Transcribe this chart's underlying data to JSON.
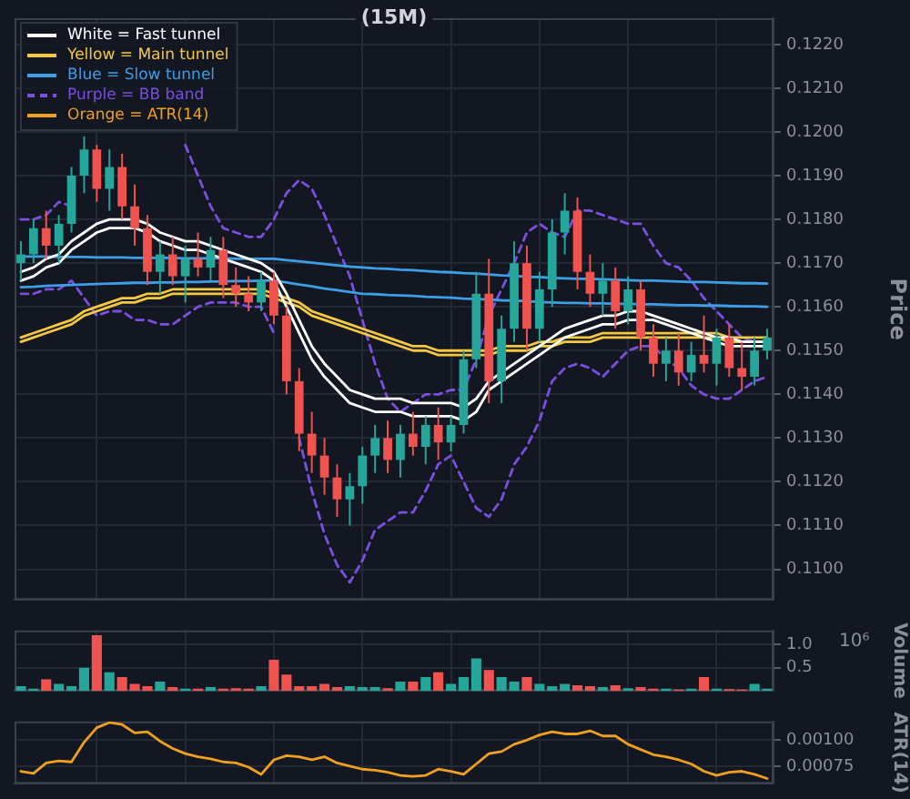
{
  "chart_data": [
    {
      "type": "candlestick",
      "title": "(15M)",
      "ylabel": "Price",
      "categories": [
        null,
        null,
        null,
        null,
        null,
        null,
        null,
        null,
        null,
        null,
        null,
        null,
        null,
        null,
        null,
        null,
        null,
        null,
        null,
        null,
        null,
        null,
        null,
        null,
        null,
        null,
        null,
        null,
        null,
        null,
        null,
        null,
        null,
        null,
        null,
        null,
        null,
        null,
        null,
        null,
        null,
        null,
        null,
        null,
        null,
        null,
        null,
        null,
        null,
        null,
        null,
        null,
        null,
        null,
        null,
        null,
        null,
        null,
        null,
        null
      ],
      "ohlc": [
        [
          0.117,
          0.1175,
          0.1166,
          0.1172
        ],
        [
          0.1172,
          0.118,
          0.117,
          0.1178
        ],
        [
          0.1178,
          0.1182,
          0.1171,
          0.1174
        ],
        [
          0.1174,
          0.1181,
          0.117,
          0.1179
        ],
        [
          0.1179,
          0.1192,
          0.1177,
          0.119
        ],
        [
          0.119,
          0.1199,
          0.1186,
          0.1196
        ],
        [
          0.1196,
          0.1197,
          0.1184,
          0.1187
        ],
        [
          0.1187,
          0.1196,
          0.1182,
          0.1192
        ],
        [
          0.1192,
          0.1195,
          0.118,
          0.1183
        ],
        [
          0.1183,
          0.1188,
          0.1174,
          0.1178
        ],
        [
          0.1178,
          0.1181,
          0.1165,
          0.1168
        ],
        [
          0.1168,
          0.1175,
          0.1163,
          0.1172
        ],
        [
          0.1172,
          0.1176,
          0.1165,
          0.1167
        ],
        [
          0.1167,
          0.1174,
          0.1161,
          0.1171
        ],
        [
          0.1171,
          0.1177,
          0.1167,
          0.1169
        ],
        [
          0.1169,
          0.1176,
          0.1166,
          0.1173
        ],
        [
          0.1173,
          0.1176,
          0.1162,
          0.1165
        ],
        [
          0.1165,
          0.1169,
          0.116,
          0.1163
        ],
        [
          0.1163,
          0.1167,
          0.1159,
          0.1161
        ],
        [
          0.1161,
          0.1168,
          0.1159,
          0.1166
        ],
        [
          0.1166,
          0.1168,
          0.1156,
          0.1158
        ],
        [
          0.1158,
          0.116,
          0.114,
          0.1143
        ],
        [
          0.1143,
          0.1146,
          0.1127,
          0.1131
        ],
        [
          0.1131,
          0.1136,
          0.1122,
          0.1126
        ],
        [
          0.1126,
          0.113,
          0.1117,
          0.1121
        ],
        [
          0.1121,
          0.1124,
          0.1112,
          0.1116
        ],
        [
          0.1116,
          0.1122,
          0.111,
          0.1119
        ],
        [
          0.1119,
          0.1128,
          0.1115,
          0.1126
        ],
        [
          0.1126,
          0.1133,
          0.1122,
          0.113
        ],
        [
          0.113,
          0.1134,
          0.1122,
          0.1125
        ],
        [
          0.1125,
          0.1133,
          0.1121,
          0.1131
        ],
        [
          0.1131,
          0.1136,
          0.1126,
          0.1128
        ],
        [
          0.1128,
          0.1135,
          0.1124,
          0.1133
        ],
        [
          0.1133,
          0.1137,
          0.1125,
          0.1129
        ],
        [
          0.1129,
          0.1135,
          0.1127,
          0.1133
        ],
        [
          0.1133,
          0.115,
          0.1131,
          0.1148
        ],
        [
          0.1148,
          0.1168,
          0.1146,
          0.1163
        ],
        [
          0.1163,
          0.1171,
          0.1138,
          0.1143
        ],
        [
          0.1143,
          0.1158,
          0.1138,
          0.1155
        ],
        [
          0.1155,
          0.1175,
          0.1152,
          0.117
        ],
        [
          0.117,
          0.1174,
          0.115,
          0.1155
        ],
        [
          0.1155,
          0.1168,
          0.1152,
          0.1164
        ],
        [
          0.1164,
          0.118,
          0.116,
          0.1177
        ],
        [
          0.1177,
          0.1186,
          0.1172,
          0.1182
        ],
        [
          0.1182,
          0.1185,
          0.1164,
          0.1168
        ],
        [
          0.1168,
          0.1172,
          0.116,
          0.1163
        ],
        [
          0.1163,
          0.117,
          0.1158,
          0.1166
        ],
        [
          0.1166,
          0.1169,
          0.1155,
          0.1159
        ],
        [
          0.1159,
          0.1167,
          0.1156,
          0.1164
        ],
        [
          0.1164,
          0.1166,
          0.115,
          0.1153
        ],
        [
          0.1153,
          0.1156,
          0.1144,
          0.1147
        ],
        [
          0.1147,
          0.1153,
          0.1143,
          0.115
        ],
        [
          0.115,
          0.1154,
          0.1142,
          0.1145
        ],
        [
          0.1145,
          0.1152,
          0.1143,
          0.1149
        ],
        [
          0.1149,
          0.1158,
          0.1145,
          0.1147
        ],
        [
          0.1147,
          0.1155,
          0.1142,
          0.1153
        ],
        [
          0.1153,
          0.1156,
          0.1144,
          0.1146
        ],
        [
          0.1146,
          0.1152,
          0.1141,
          0.1144
        ],
        [
          0.1144,
          0.1153,
          0.1142,
          0.115
        ],
        [
          0.115,
          0.1155,
          0.1148,
          0.1153
        ]
      ],
      "colors": [
        "#26a69a",
        "#26a69a",
        "#ef5350",
        "#26a69a",
        "#26a69a",
        "#26a69a",
        "#ef5350",
        "#26a69a",
        "#ef5350",
        "#ef5350",
        "#ef5350",
        "#26a69a",
        "#ef5350",
        "#26a69a",
        "#ef5350",
        "#26a69a",
        "#ef5350",
        "#ef5350",
        "#ef5350",
        "#26a69a",
        "#ef5350",
        "#ef5350",
        "#ef5350",
        "#ef5350",
        "#ef5350",
        "#ef5350",
        "#26a69a",
        "#26a69a",
        "#26a69a",
        "#ef5350",
        "#26a69a",
        "#ef5350",
        "#26a69a",
        "#ef5350",
        "#26a69a",
        "#26a69a",
        "#26a69a",
        "#ef5350",
        "#26a69a",
        "#26a69a",
        "#ef5350",
        "#26a69a",
        "#26a69a",
        "#26a69a",
        "#ef5350",
        "#ef5350",
        "#26a69a",
        "#ef5350",
        "#26a69a",
        "#ef5350",
        "#ef5350",
        "#26a69a",
        "#ef5350",
        "#26a69a",
        "#ef5350",
        "#26a69a",
        "#ef5350",
        "#ef5350",
        "#26a69a",
        "#26a69a"
      ],
      "series": [
        {
          "type": "line",
          "name": "White = Fast tunnel",
          "color": "#ffffff",
          "values": [
            0.1168,
            0.1169,
            0.1171,
            0.1172,
            0.1175,
            0.1177,
            0.1179,
            0.118,
            0.118,
            0.118,
            0.1179,
            0.1177,
            0.1176,
            0.1175,
            0.1175,
            0.1174,
            0.1173,
            0.1172,
            0.1171,
            0.117,
            0.1168,
            0.1163,
            0.1157,
            0.1151,
            0.1147,
            0.1144,
            0.1141,
            0.114,
            0.1139,
            0.1139,
            0.1139,
            0.1138,
            0.1138,
            0.1138,
            0.1138,
            0.1137,
            0.1139,
            0.1143,
            0.1145,
            0.1147,
            0.1149,
            0.1151,
            0.1153,
            0.1155,
            0.1156,
            0.1157,
            0.1158,
            0.1158,
            0.1159,
            0.1159,
            0.1158,
            0.1157,
            0.1156,
            0.1155,
            0.1154,
            0.1153,
            0.1153,
            0.1152,
            0.1152,
            0.1152
          ]
        },
        {
          "type": "line",
          "color": "#ffffff",
          "values": [
            0.1166,
            0.1167,
            0.1169,
            0.117,
            0.1173,
            0.1175,
            0.1177,
            0.1178,
            0.1178,
            0.1178,
            0.1177,
            0.1175,
            0.1174,
            0.1173,
            0.1173,
            0.1172,
            0.1171,
            0.117,
            0.1169,
            0.1168,
            0.1166,
            0.116,
            0.1154,
            0.1148,
            0.1144,
            0.1141,
            0.1138,
            0.1137,
            0.1136,
            0.1136,
            0.1136,
            0.1135,
            0.1135,
            0.1135,
            0.1135,
            0.1134,
            0.1136,
            0.1141,
            0.1143,
            0.1145,
            0.1147,
            0.1149,
            0.1151,
            0.1153,
            0.1154,
            0.1155,
            0.1156,
            0.1156,
            0.1157,
            0.1157,
            0.1157,
            0.1156,
            0.1155,
            0.1154,
            0.1153,
            0.1152,
            0.1151,
            0.1151,
            0.1151,
            0.1151
          ]
        },
        {
          "type": "line",
          "name": "Yellow = Main tunnel",
          "color": "#f5c842",
          "values": [
            0.1153,
            0.1154,
            0.1155,
            0.1156,
            0.1157,
            0.1159,
            0.116,
            0.1161,
            0.1162,
            0.1162,
            0.1163,
            0.1163,
            0.1164,
            0.1164,
            0.1164,
            0.1164,
            0.1164,
            0.1164,
            0.1164,
            0.1164,
            0.1163,
            0.1162,
            0.1161,
            0.1159,
            0.1158,
            0.1157,
            0.1156,
            0.1155,
            0.1154,
            0.1153,
            0.1152,
            0.1151,
            0.1151,
            0.115,
            0.115,
            0.115,
            0.115,
            0.115,
            0.1151,
            0.1151,
            0.1151,
            0.1152,
            0.1152,
            0.1153,
            0.1153,
            0.1153,
            0.1154,
            0.1154,
            0.1154,
            0.1154,
            0.1154,
            0.1154,
            0.1154,
            0.1154,
            0.1154,
            0.1154,
            0.1153,
            0.1153,
            0.1153,
            0.1153
          ]
        },
        {
          "type": "line",
          "color": "#f5c842",
          "values": [
            0.1152,
            0.1153,
            0.1154,
            0.1155,
            0.1156,
            0.1158,
            0.1159,
            0.116,
            0.1161,
            0.1161,
            0.1162,
            0.1162,
            0.1163,
            0.1163,
            0.1163,
            0.1163,
            0.1163,
            0.1163,
            0.1163,
            0.1163,
            0.1162,
            0.1161,
            0.116,
            0.1158,
            0.1157,
            0.1156,
            0.1155,
            0.1154,
            0.1153,
            0.1152,
            0.1151,
            0.115,
            0.115,
            0.1149,
            0.1149,
            0.1149,
            0.1149,
            0.1149,
            0.115,
            0.115,
            0.115,
            0.1151,
            0.1151,
            0.1152,
            0.1152,
            0.1152,
            0.1153,
            0.1153,
            0.1153,
            0.1153,
            0.1153,
            0.1153,
            0.1153,
            0.1153,
            0.1153,
            0.1153,
            0.1152,
            0.1152,
            0.1152,
            0.1152
          ]
        },
        {
          "type": "line",
          "name": "Blue = Slow tunnel",
          "color": "#3d9fe6",
          "values": [
            0.11715,
            0.11715,
            0.11715,
            0.11714,
            0.11714,
            0.11714,
            0.11713,
            0.11713,
            0.11713,
            0.11712,
            0.11712,
            0.11712,
            0.11712,
            0.11711,
            0.11711,
            0.11711,
            0.11711,
            0.1171,
            0.1171,
            0.1171,
            0.1171,
            0.11707,
            0.11704,
            0.11701,
            0.11698,
            0.11695,
            0.11692,
            0.1169,
            0.11688,
            0.11687,
            0.11685,
            0.11684,
            0.11682,
            0.1168,
            0.11679,
            0.11677,
            0.11676,
            0.11674,
            0.11672,
            0.11671,
            0.11669,
            0.11668,
            0.11666,
            0.11665,
            0.11664,
            0.11664,
            0.11663,
            0.11662,
            0.11661,
            0.1166,
            0.1166,
            0.11659,
            0.11658,
            0.11657,
            0.11657,
            0.11656,
            0.11655,
            0.11654,
            0.11654,
            0.11653
          ]
        },
        {
          "type": "line",
          "color": "#3d9fe6",
          "values": [
            0.11645,
            0.11646,
            0.11648,
            0.11649,
            0.1165,
            0.11651,
            0.11652,
            0.11653,
            0.11654,
            0.11655,
            0.11655,
            0.11656,
            0.11656,
            0.11657,
            0.11657,
            0.11658,
            0.11658,
            0.11659,
            0.11659,
            0.1166,
            0.1166,
            0.11656,
            0.11651,
            0.11647,
            0.11642,
            0.11638,
            0.11634,
            0.1163,
            0.11629,
            0.11627,
            0.11626,
            0.11625,
            0.11623,
            0.11622,
            0.11621,
            0.11619,
            0.11618,
            0.11617,
            0.11615,
            0.11614,
            0.11613,
            0.11611,
            0.1161,
            0.11609,
            0.11609,
            0.11608,
            0.11608,
            0.11607,
            0.11607,
            0.11606,
            0.11606,
            0.11605,
            0.11604,
            0.11604,
            0.11603,
            0.11603,
            0.11602,
            0.11601,
            0.11601,
            0.116
          ]
        },
        {
          "type": "line",
          "name": "Purple = BB band",
          "color": "#7b4fe0",
          "line_style": "dashed",
          "values": [
            0.118,
            0.118,
            0.1181,
            0.1184,
            0.1183,
            null,
            null,
            null,
            null,
            null,
            null,
            null,
            null,
            0.1197,
            0.119,
            0.1183,
            0.1178,
            0.1177,
            0.1176,
            0.1176,
            0.118,
            0.1186,
            0.1189,
            0.1187,
            0.1181,
            0.1174,
            0.1167,
            0.1157,
            0.1147,
            0.1139,
            0.1136,
            0.1138,
            0.114,
            0.114,
            0.1141,
            0.1141,
            0.1148,
            0.1158,
            0.1164,
            0.117,
            0.1177,
            0.1179,
            0.1177,
            0.1176,
            0.1182,
            0.1182,
            0.1181,
            0.118,
            0.1179,
            0.1179,
            0.1174,
            0.117,
            0.1169,
            0.1166,
            0.1162,
            0.1159,
            0.1156,
            0.1153,
            0.1152,
            0.1152
          ]
        },
        {
          "type": "line",
          "color": "#7b4fe0",
          "line_style": "dashed",
          "values": [
            0.1163,
            0.1163,
            0.1164,
            0.1164,
            0.1166,
            0.1162,
            0.1158,
            0.1159,
            0.1159,
            0.1157,
            0.1157,
            0.1156,
            0.1156,
            0.1158,
            0.116,
            0.1161,
            0.1161,
            0.1161,
            0.116,
            0.116,
            0.1154,
            null,
            0.113,
            0.1118,
            0.1108,
            0.1101,
            0.1097,
            0.1102,
            0.1109,
            0.1111,
            0.1113,
            0.1113,
            0.1118,
            0.1124,
            0.1126,
            0.112,
            0.1114,
            0.1112,
            0.1116,
            0.1124,
            0.1128,
            0.1134,
            0.1143,
            0.1146,
            0.1147,
            0.1146,
            0.1144,
            0.1147,
            0.115,
            0.1151,
            0.1151,
            0.1148,
            0.1146,
            0.1142,
            0.114,
            0.1139,
            0.1139,
            0.1141,
            0.1143,
            0.1144
          ]
        }
      ],
      "ylim": [
        0.1093,
        0.1226
      ],
      "yticks": [
        {
          "value": 0.11,
          "label": "0.1100"
        },
        {
          "value": 0.111,
          "label": "0.1110"
        },
        {
          "value": 0.112,
          "label": "0.1120"
        },
        {
          "value": 0.113,
          "label": "0.1130"
        },
        {
          "value": 0.114,
          "label": "0.1140"
        },
        {
          "value": 0.115,
          "label": "0.1150"
        },
        {
          "value": 0.116,
          "label": "0.1160"
        },
        {
          "value": 0.117,
          "label": "0.1170"
        },
        {
          "value": 0.118,
          "label": "0.1180"
        },
        {
          "value": 0.119,
          "label": "0.1190"
        },
        {
          "value": 0.12,
          "label": "0.1200"
        },
        {
          "value": 0.121,
          "label": "0.1210"
        },
        {
          "value": 0.122,
          "label": "0.1220"
        }
      ],
      "grid": true,
      "legend": "top left",
      "tick_labels": "y"
    },
    {
      "type": "bar",
      "ylabel": "Volume",
      "annotations": [
        "10⁶"
      ],
      "categories": [
        null,
        null,
        null,
        null,
        null,
        null,
        null,
        null,
        null,
        null,
        null,
        null,
        null,
        null,
        null,
        null,
        null,
        null,
        null,
        null,
        null,
        null,
        null,
        null,
        null,
        null,
        null,
        null,
        null,
        null,
        null,
        null,
        null,
        null,
        null,
        null,
        null,
        null,
        null,
        null,
        null,
        null,
        null,
        null,
        null,
        null,
        null,
        null,
        null,
        null,
        null,
        null,
        null,
        null,
        null,
        null,
        null,
        null,
        null,
        null
      ],
      "values": [
        0.1,
        0.05,
        0.25,
        0.15,
        0.1,
        0.5,
        1.2,
        0.4,
        0.3,
        0.15,
        0.1,
        0.2,
        0.08,
        0.05,
        0.05,
        0.08,
        0.05,
        0.06,
        0.05,
        0.1,
        0.67,
        0.35,
        0.1,
        0.1,
        0.15,
        0.08,
        0.1,
        0.08,
        0.08,
        0.06,
        0.2,
        0.2,
        0.3,
        0.4,
        0.15,
        0.3,
        0.7,
        0.45,
        0.3,
        0.2,
        0.3,
        0.15,
        0.1,
        0.15,
        0.12,
        0.1,
        0.08,
        0.12,
        0.06,
        0.08,
        0.05,
        0.05,
        0.03,
        0.05,
        0.3,
        0.05,
        0.04,
        0.03,
        0.15,
        0.05
      ],
      "colors": [
        "#26a69a",
        "#26a69a",
        "#ef5350",
        "#26a69a",
        "#26a69a",
        "#26a69a",
        "#ef5350",
        "#26a69a",
        "#ef5350",
        "#ef5350",
        "#ef5350",
        "#26a69a",
        "#ef5350",
        "#26a69a",
        "#ef5350",
        "#26a69a",
        "#ef5350",
        "#ef5350",
        "#ef5350",
        "#26a69a",
        "#ef5350",
        "#ef5350",
        "#ef5350",
        "#ef5350",
        "#ef5350",
        "#ef5350",
        "#26a69a",
        "#26a69a",
        "#26a69a",
        "#ef5350",
        "#26a69a",
        "#ef5350",
        "#26a69a",
        "#ef5350",
        "#26a69a",
        "#26a69a",
        "#26a69a",
        "#ef5350",
        "#26a69a",
        "#26a69a",
        "#ef5350",
        "#26a69a",
        "#26a69a",
        "#26a69a",
        "#ef5350",
        "#ef5350",
        "#26a69a",
        "#ef5350",
        "#26a69a",
        "#ef5350",
        "#ef5350",
        "#26a69a",
        "#ef5350",
        "#26a69a",
        "#ef5350",
        "#26a69a",
        "#ef5350",
        "#ef5350",
        "#26a69a",
        "#26a69a"
      ],
      "ylim": [
        0,
        1.3
      ],
      "yticks": [
        {
          "value": 0.5,
          "label": "0.5"
        },
        {
          "value": 1,
          "label": "1.0"
        }
      ],
      "grid": true,
      "tick_labels": "y"
    },
    {
      "type": "line",
      "ylabel": "ATR(14)",
      "categories": [
        null,
        null,
        null,
        null,
        null,
        null,
        null,
        null,
        null,
        null,
        null,
        null,
        null,
        null,
        null,
        null,
        null,
        null,
        null,
        null,
        null,
        null,
        null,
        null,
        null,
        null,
        null,
        null,
        null,
        null,
        null,
        null,
        null,
        null,
        null,
        null,
        null,
        null,
        null,
        null,
        null,
        null,
        null,
        null,
        null,
        null,
        null,
        null,
        null,
        null,
        null,
        null,
        null,
        null,
        null,
        null,
        null,
        null,
        null,
        null
      ],
      "series": [
        {
          "name": "Orange = ATR(14)",
          "color": "#f0a020",
          "values": [
            0.0007,
            0.00068,
            0.00078,
            0.0008,
            0.00079,
            0.00098,
            0.00112,
            0.00117,
            0.00115,
            0.00107,
            0.00108,
            0.00099,
            0.00092,
            0.00087,
            0.00084,
            0.00082,
            0.00079,
            0.00078,
            0.00074,
            0.00067,
            0.00081,
            0.00085,
            0.00084,
            0.00081,
            0.00084,
            0.00078,
            0.00075,
            0.00072,
            0.00071,
            0.00069,
            0.00066,
            0.00065,
            0.00066,
            0.00072,
            0.0007,
            0.00067,
            0.00077,
            0.00087,
            0.00089,
            0.00096,
            0.001,
            0.00105,
            0.00108,
            0.00106,
            0.00106,
            0.00109,
            0.00104,
            0.00104,
            0.00096,
            0.00091,
            0.00086,
            0.00084,
            0.00081,
            0.00077,
            0.0007,
            0.00066,
            0.00069,
            0.0007,
            0.00067,
            0.00063
          ]
        }
      ],
      "ylim": [
        0.00058,
        0.00118
      ],
      "yticks": [
        {
          "value": 0.00075,
          "label": "0.00075"
        },
        {
          "value": 0.001,
          "label": "0.00100"
        }
      ],
      "grid": true,
      "tick_labels": "y"
    }
  ]
}
